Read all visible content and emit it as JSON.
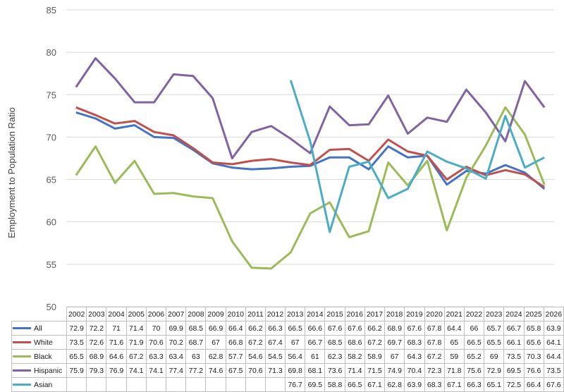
{
  "chart_data": {
    "type": "line",
    "ylabel": "Employment to Population Ratio",
    "ylim": [
      50,
      85
    ],
    "yticks": [
      50,
      55,
      60,
      65,
      70,
      75,
      80,
      85
    ],
    "categories": [
      "2002",
      "2003",
      "2004",
      "2005",
      "2006",
      "2007",
      "2008",
      "2009",
      "2010",
      "2011",
      "2012",
      "2013",
      "2014",
      "2015",
      "2016",
      "2017",
      "2018",
      "2019",
      "2020",
      "2021",
      "2022",
      "2023",
      "2024",
      "2025",
      "2026"
    ],
    "grid": true,
    "legend": "data-table",
    "series": [
      {
        "name": "All",
        "color": "#4472C4",
        "values": [
          72.9,
          72.2,
          71,
          71.4,
          70,
          69.9,
          68.5,
          66.9,
          66.4,
          66.2,
          66.3,
          66.5,
          66.6,
          67.6,
          67.6,
          66.2,
          68.9,
          67.6,
          67.8,
          64.4,
          66,
          65.7,
          66.7,
          65.8,
          63.9
        ]
      },
      {
        "name": "White",
        "color": "#C0504D",
        "values": [
          73.5,
          72.6,
          71.6,
          71.9,
          70.6,
          70.2,
          68.7,
          67,
          66.8,
          67.2,
          67.4,
          67,
          66.7,
          68.5,
          68.6,
          67.2,
          69.7,
          68.3,
          67.8,
          65,
          66.5,
          65.5,
          66.1,
          65.6,
          64.1
        ]
      },
      {
        "name": "Black",
        "color": "#9BBB59",
        "values": [
          65.5,
          68.9,
          64.6,
          67.2,
          63.3,
          63.4,
          63,
          62.8,
          57.7,
          54.6,
          54.5,
          56.4,
          61,
          62.3,
          58.2,
          58.9,
          67,
          64.3,
          67.2,
          59,
          65.2,
          69,
          73.5,
          70.3,
          64.4
        ]
      },
      {
        "name": "Hispanic",
        "color": "#8064A2",
        "values": [
          75.9,
          79.3,
          76.9,
          74.1,
          74.1,
          77.4,
          77.2,
          74.6,
          67.5,
          70.6,
          71.3,
          69.8,
          68.1,
          73.6,
          71.4,
          71.5,
          74.9,
          70.4,
          72.3,
          71.8,
          75.6,
          72.9,
          69.5,
          76.6,
          73.5
        ]
      },
      {
        "name": "Asian",
        "color": "#4BACC6",
        "values": [
          null,
          null,
          null,
          null,
          null,
          null,
          null,
          null,
          null,
          null,
          null,
          76.7,
          69.5,
          58.8,
          66.5,
          67.1,
          62.8,
          63.9,
          68.3,
          67.1,
          66.3,
          65.1,
          72.5,
          66.4,
          67.6
        ]
      }
    ]
  }
}
